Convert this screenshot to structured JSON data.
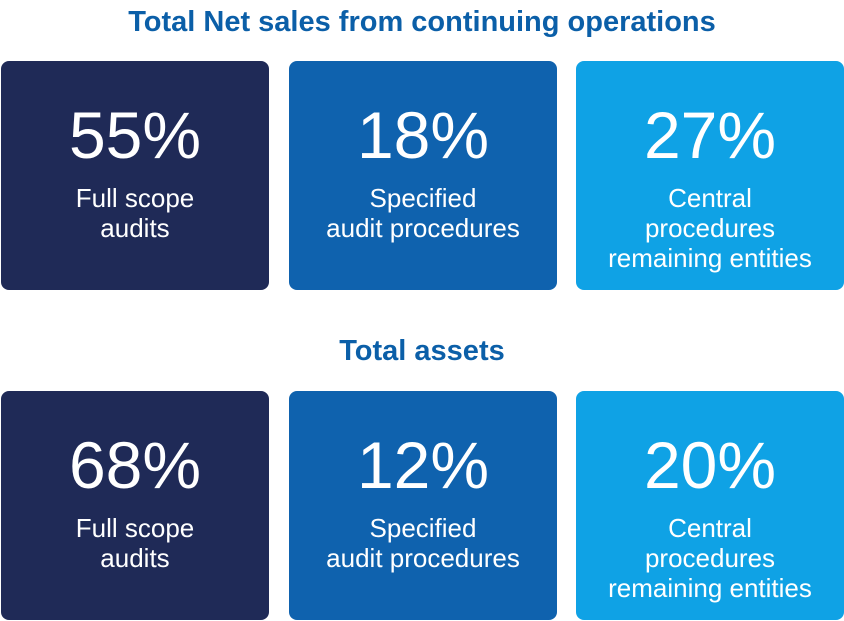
{
  "sections": [
    {
      "title": "Total Net sales from continuing operations",
      "cards": [
        {
          "percent": "55%",
          "label": "Full scope\naudits"
        },
        {
          "percent": "18%",
          "label": "Specified\naudit procedures"
        },
        {
          "percent": "27%",
          "label": "Central\nprocedures\nremaining entities"
        }
      ]
    },
    {
      "title": "Total assets",
      "cards": [
        {
          "percent": "68%",
          "label": "Full scope\naudits"
        },
        {
          "percent": "12%",
          "label": "Specified\naudit procedures"
        },
        {
          "percent": "20%",
          "label": "Central\nprocedures\nremaining entities"
        }
      ]
    }
  ],
  "colors": {
    "title": "#0b5fa8",
    "full_scope": "#1f2a57",
    "specified": "#0f62ae",
    "central": "#0fa2e5"
  }
}
